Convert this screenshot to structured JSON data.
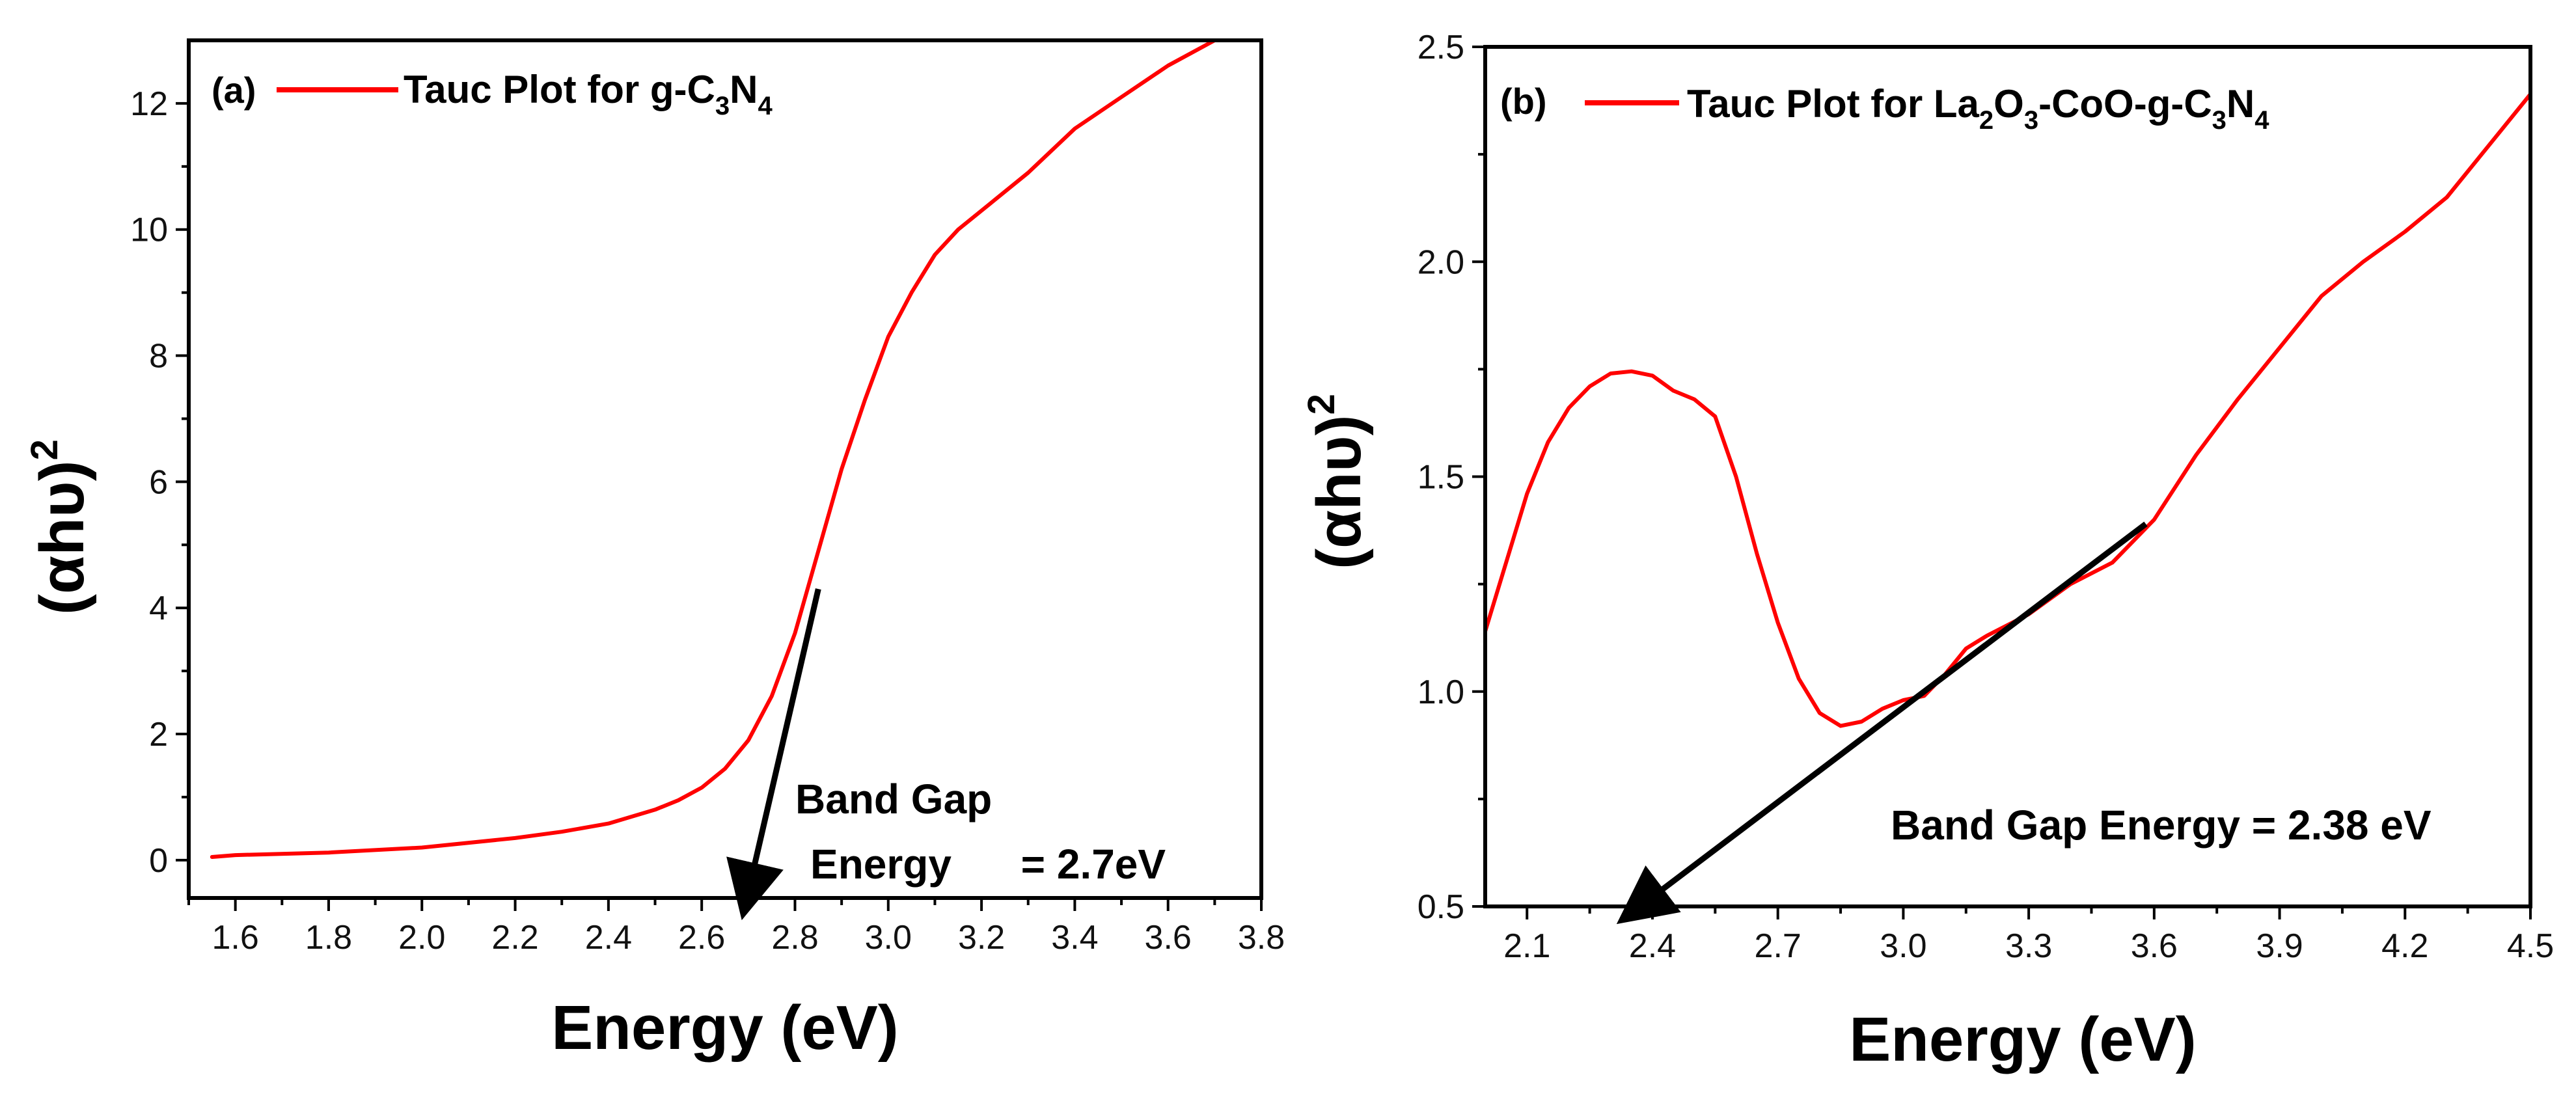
{
  "chart_data": [
    {
      "type": "line",
      "panel_label": "(a)",
      "legend": {
        "prefix": "Tauc Plot  for g-C",
        "sub1": "3",
        "mid": "N",
        "sub2": "4"
      },
      "xlabel": "Energy (eV)",
      "ylabel": "(αhυ)",
      "ylabel_sup": "2",
      "xlim": [
        1.5,
        3.8
      ],
      "ylim": [
        -0.6,
        13.0
      ],
      "xticks": [
        "1.6",
        "1.8",
        "2.0",
        "2.2",
        "2.4",
        "2.6",
        "2.8",
        "3.0",
        "3.2",
        "3.4",
        "3.6",
        "3.8"
      ],
      "yticks": [
        "0",
        "2",
        "4",
        "6",
        "8",
        "10",
        "12"
      ],
      "series": [
        {
          "name": "Tauc Plot for g-C3N4",
          "color": "#ff0000",
          "x": [
            1.55,
            1.6,
            1.8,
            2.0,
            2.2,
            2.3,
            2.4,
            2.5,
            2.55,
            2.6,
            2.65,
            2.7,
            2.75,
            2.8,
            2.85,
            2.9,
            2.95,
            3.0,
            3.05,
            3.1,
            3.15,
            3.2,
            3.3,
            3.4,
            3.5,
            3.6,
            3.7
          ],
          "y": [
            0.05,
            0.08,
            0.12,
            0.2,
            0.35,
            0.45,
            0.58,
            0.8,
            0.95,
            1.15,
            1.45,
            1.9,
            2.6,
            3.6,
            4.9,
            6.2,
            7.3,
            8.3,
            9.0,
            9.6,
            10.0,
            10.3,
            10.9,
            11.6,
            12.1,
            12.6,
            13.0
          ]
        }
      ],
      "arrow": {
        "from": [
          2.85,
          4.3
        ],
        "to": [
          2.7,
          -0.5
        ]
      },
      "annotation_line1": "Band Gap",
      "annotation_line2": "Energy      = 2.7eV"
    },
    {
      "type": "line",
      "panel_label": "(b)",
      "legend": {
        "prefix": "Tauc Plot  for La",
        "sub1": "2",
        "mid1": "O",
        "sub2": "3",
        "mid2": "-CoO-g-C",
        "sub3": "3",
        "mid3": "N",
        "sub4": "4"
      },
      "xlabel": "Energy (eV)",
      "ylabel": "(αhυ)",
      "ylabel_sup": "2",
      "xlim": [
        2.0,
        4.5
      ],
      "ylim": [
        0.5,
        2.5
      ],
      "xticks": [
        "2.1",
        "2.4",
        "2.7",
        "3.0",
        "3.3",
        "3.6",
        "3.9",
        "4.2",
        "4.5"
      ],
      "yticks": [
        "0.5",
        "1.0",
        "1.5",
        "2.0",
        "2.5"
      ],
      "series": [
        {
          "name": "Tauc Plot for La2O3-CoO-g-C3N4",
          "color": "#ff0000",
          "x": [
            2.0,
            2.05,
            2.1,
            2.15,
            2.2,
            2.25,
            2.3,
            2.35,
            2.4,
            2.45,
            2.5,
            2.55,
            2.6,
            2.65,
            2.7,
            2.75,
            2.8,
            2.85,
            2.9,
            2.95,
            3.0,
            3.05,
            3.1,
            3.15,
            3.2,
            3.3,
            3.4,
            3.5,
            3.6,
            3.7,
            3.8,
            3.9,
            4.0,
            4.1,
            4.2,
            4.3,
            4.4,
            4.5
          ],
          "y": [
            1.14,
            1.3,
            1.46,
            1.58,
            1.66,
            1.71,
            1.74,
            1.745,
            1.735,
            1.7,
            1.68,
            1.64,
            1.5,
            1.32,
            1.16,
            1.03,
            0.95,
            0.92,
            0.93,
            0.96,
            0.98,
            0.99,
            1.04,
            1.1,
            1.13,
            1.18,
            1.25,
            1.3,
            1.4,
            1.55,
            1.68,
            1.8,
            1.92,
            2.0,
            2.07,
            2.15,
            2.27,
            2.39
          ]
        }
      ],
      "arrow": {
        "from": [
          3.58,
          1.39
        ],
        "to": [
          2.37,
          0.5
        ]
      },
      "annotation_line1": "Band Gap Energy = 2.38 eV"
    }
  ]
}
